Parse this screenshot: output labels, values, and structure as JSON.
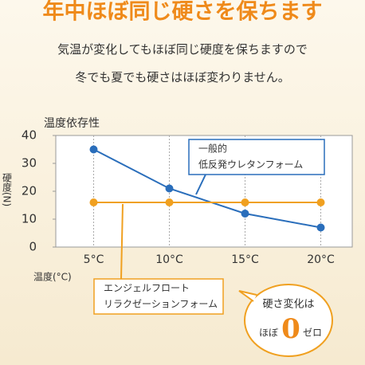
{
  "header": {
    "title": "年中ほぼ同じ硬さを保ちます",
    "lines": [
      "気温が変化してもほぼ同じ硬度を保ちますので",
      "冬でも夏でも硬さはほぼ変わりません。"
    ]
  },
  "chart_data": {
    "type": "line",
    "title": "温度依存性",
    "y_label": "硬度(N)",
    "x_label": "温度(°C)",
    "categories": [
      "5°C",
      "10°C",
      "15°C",
      "20°C"
    ],
    "series": [
      {
        "name": [
          "一般的",
          "低反発ウレタンフォーム"
        ],
        "color": "#2a6ebb",
        "values": [
          35,
          21,
          12,
          7
        ]
      },
      {
        "name": [
          "エンジェルフロート",
          "リラクゼーションフォーム"
        ],
        "color": "#f0a020",
        "values": [
          16,
          16,
          16,
          16
        ]
      }
    ],
    "ylim": [
      0,
      40
    ],
    "yticks": [
      0,
      10,
      20,
      30,
      40
    ],
    "grid": true,
    "badge": {
      "top": "硬さ変化は",
      "left": "ほぼ",
      "big": "0",
      "right": "ゼロ"
    }
  }
}
